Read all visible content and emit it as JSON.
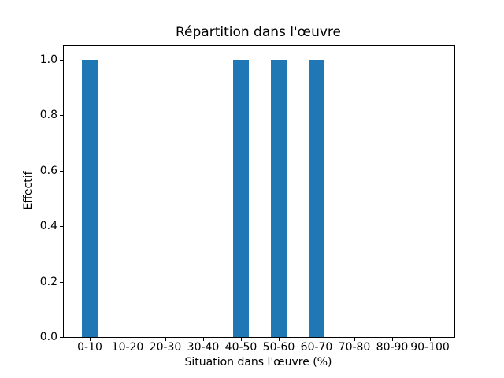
{
  "chart_data": {
    "type": "bar",
    "title": "Répartition dans l'œuvre",
    "xlabel": "Situation dans l'œuvre (%)",
    "ylabel": "Effectif",
    "categories": [
      "0-10",
      "10-20",
      "20-30",
      "30-40",
      "40-50",
      "50-60",
      "60-70",
      "70-80",
      "80-90",
      "90-100"
    ],
    "values": [
      1,
      0,
      0,
      0,
      1,
      1,
      1,
      0,
      0,
      0
    ],
    "yticks": [
      0.0,
      0.2,
      0.4,
      0.6,
      0.8,
      1.0
    ],
    "ytick_labels": [
      "0.0",
      "0.2",
      "0.4",
      "0.6",
      "0.8",
      "1.0"
    ],
    "xlim": [
      -0.6875,
      9.6458
    ],
    "ylim": [
      0,
      1.05
    ],
    "bar_width": 0.4,
    "bar_color": "#1f77b4",
    "frame_color": "#000000",
    "background_color": "#ffffff",
    "grid": false
  }
}
